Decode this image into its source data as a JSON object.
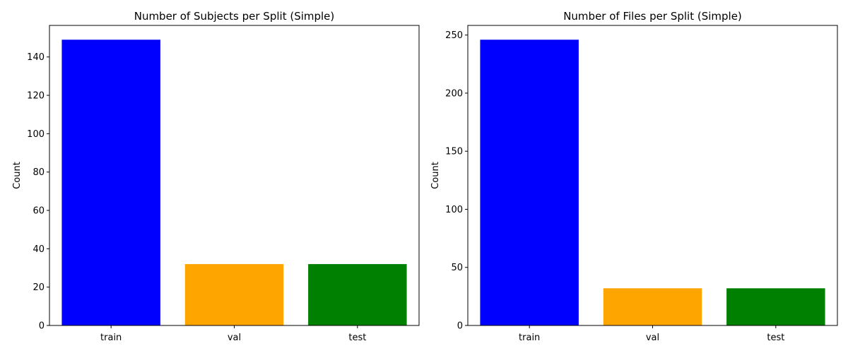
{
  "chart_data": [
    {
      "type": "bar",
      "title": "Number of Subjects per Split (Simple)",
      "xlabel": "",
      "ylabel": "Count",
      "categories": [
        "train",
        "val",
        "test"
      ],
      "values": [
        149,
        32,
        32
      ],
      "colors": [
        "#0000ff",
        "#ffa500",
        "#008000"
      ],
      "ylim": [
        0,
        156.45
      ],
      "yticks": [
        0,
        20,
        40,
        60,
        80,
        100,
        120,
        140
      ],
      "grid": false,
      "legend": "none"
    },
    {
      "type": "bar",
      "title": "Number of Files per Split (Simple)",
      "xlabel": "",
      "ylabel": "Count",
      "categories": [
        "train",
        "val",
        "test"
      ],
      "values": [
        246,
        32,
        32
      ],
      "colors": [
        "#0000ff",
        "#ffa500",
        "#008000"
      ],
      "ylim": [
        0,
        258.3
      ],
      "yticks": [
        0,
        50,
        100,
        150,
        200,
        250
      ],
      "grid": false,
      "legend": "none"
    }
  ]
}
